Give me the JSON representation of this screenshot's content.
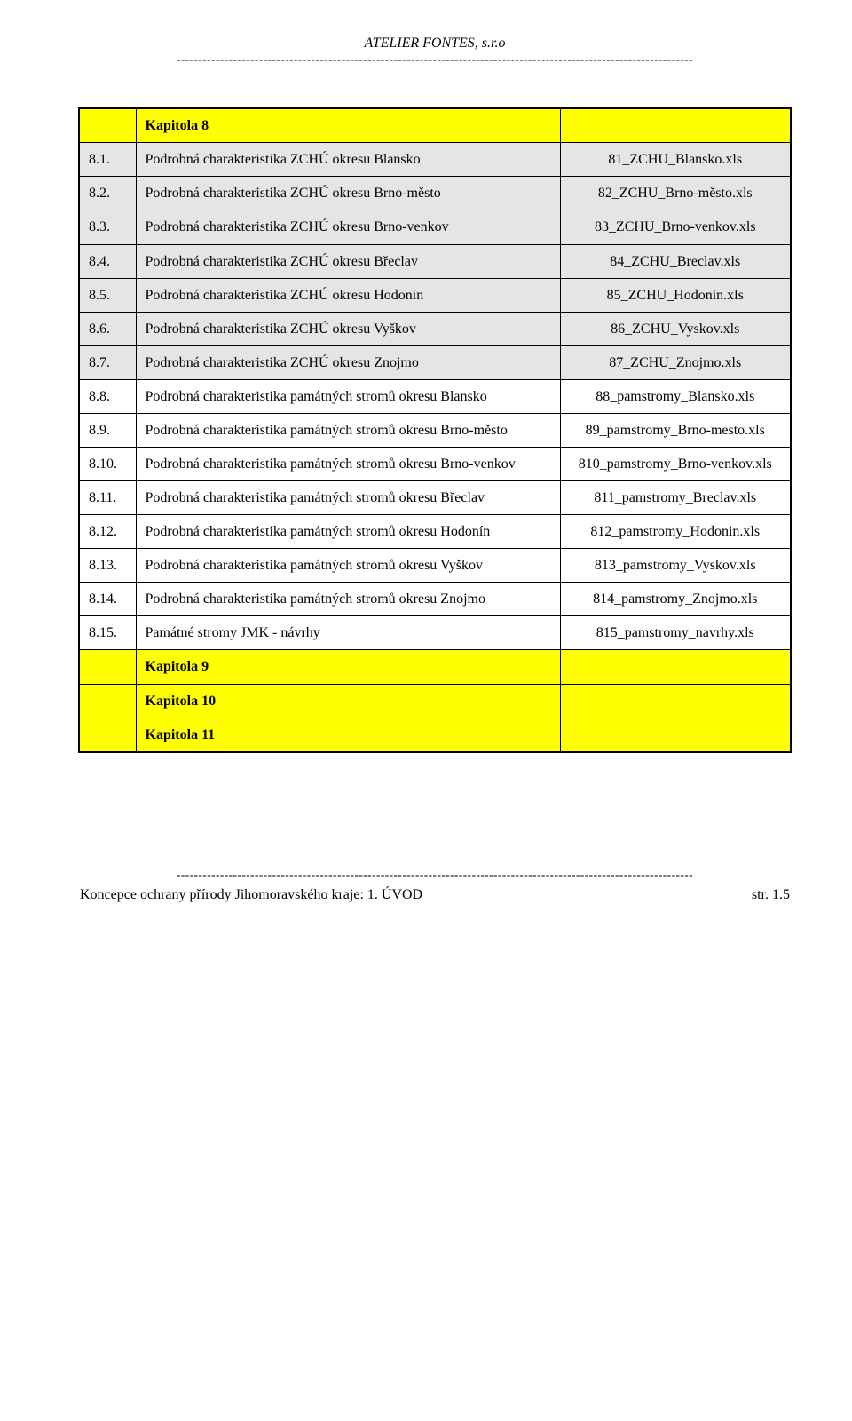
{
  "header": {
    "company": "ATELIER FONTES, s.r.o",
    "dashes": "-----------------------------------------------------------------------------------------------------------------------"
  },
  "table": {
    "rows": [
      {
        "class": "row-yellow",
        "num": "",
        "desc": "Kapitola 8",
        "file": "",
        "bold": true
      },
      {
        "class": "row-grey",
        "num": "8.1.",
        "desc": "Podrobná charakteristika ZCHÚ okresu Blansko",
        "file": "81_ZCHU_Blansko.xls"
      },
      {
        "class": "row-grey",
        "num": "8.2.",
        "desc": "Podrobná charakteristika ZCHÚ okresu Brno-město",
        "file": "82_ZCHU_Brno-město.xls"
      },
      {
        "class": "row-grey",
        "num": "8.3.",
        "desc": "Podrobná charakteristika ZCHÚ okresu Brno-venkov",
        "file": "83_ZCHU_Brno-venkov.xls"
      },
      {
        "class": "row-grey",
        "num": "8.4.",
        "desc": "Podrobná charakteristika ZCHÚ okresu Břeclav",
        "file": "84_ZCHU_Breclav.xls"
      },
      {
        "class": "row-grey",
        "num": "8.5.",
        "desc": "Podrobná charakteristika ZCHÚ okresu Hodonín",
        "file": "85_ZCHU_Hodonin.xls"
      },
      {
        "class": "row-grey",
        "num": "8.6.",
        "desc": "Podrobná charakteristika ZCHÚ okresu Vyškov",
        "file": "86_ZCHU_Vyskov.xls"
      },
      {
        "class": "row-grey",
        "num": "8.7.",
        "desc": "Podrobná charakteristika ZCHÚ okresu Znojmo",
        "file": "87_ZCHU_Znojmo.xls"
      },
      {
        "class": "row-white",
        "num": "8.8.",
        "desc": "Podrobná charakteristika památných stromů okresu Blansko",
        "file": "88_pamstromy_Blansko.xls"
      },
      {
        "class": "row-white",
        "num": "8.9.",
        "desc": "Podrobná charakteristika památných stromů okresu Brno-město",
        "file": "89_pamstromy_Brno-mesto.xls"
      },
      {
        "class": "row-white",
        "num": "8.10.",
        "desc": "Podrobná charakteristika památných stromů okresu Brno-venkov",
        "file": "810_pamstromy_Brno-venkov.xls"
      },
      {
        "class": "row-white",
        "num": "8.11.",
        "desc": "Podrobná charakteristika památných stromů okresu Břeclav",
        "file": "811_pamstromy_Breclav.xls"
      },
      {
        "class": "row-white",
        "num": "8.12.",
        "desc": "Podrobná charakteristika památných stromů okresu Hodonín",
        "file": "812_pamstromy_Hodonin.xls"
      },
      {
        "class": "row-white",
        "num": "8.13.",
        "desc": "Podrobná charakteristika památných stromů okresu Vyškov",
        "file": "813_pamstromy_Vyskov.xls"
      },
      {
        "class": "row-white",
        "num": "8.14.",
        "desc": "Podrobná charakteristika památných stromů okresu Znojmo",
        "file": "814_pamstromy_Znojmo.xls"
      },
      {
        "class": "row-white",
        "num": "8.15.",
        "desc": "Památné stromy JMK - návrhy",
        "file": "815_pamstromy_navrhy.xls"
      },
      {
        "class": "row-yellow",
        "num": "",
        "desc": "Kapitola 9",
        "file": "",
        "bold": true
      },
      {
        "class": "row-yellow",
        "num": "",
        "desc": "Kapitola 10",
        "file": "",
        "bold": true
      },
      {
        "class": "row-yellow",
        "num": "",
        "desc": "Kapitola 11",
        "file": "",
        "bold": true
      }
    ]
  },
  "footer": {
    "left": "Koncepce ochrany přírody Jihomoravského kraje: 1.  ÚVOD",
    "right": "str.  1.5"
  }
}
